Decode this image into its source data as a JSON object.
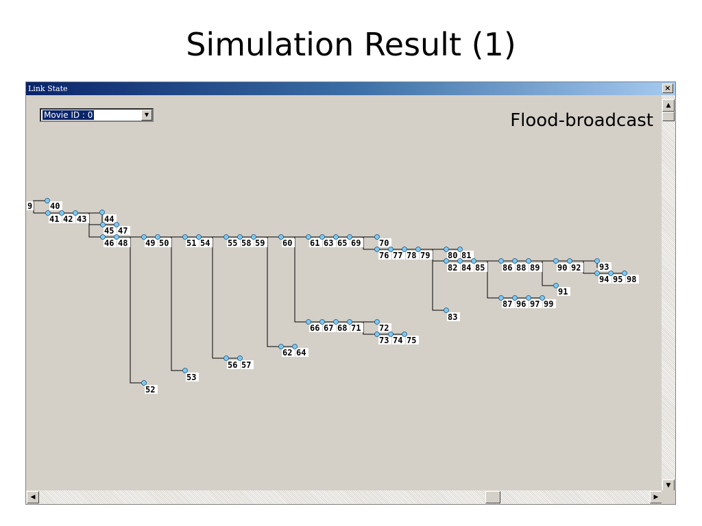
{
  "slide": {
    "title": "Simulation Result (1)"
  },
  "window": {
    "title": "Link State",
    "close_glyph": "×",
    "movie_select": {
      "value": "Movie ID : 0"
    },
    "overlay_label": "Flood-broadcast",
    "icons": {
      "close": "close-icon",
      "dropdown": "chevron-down-icon",
      "scroll_up": "arrow-up-icon",
      "scroll_down": "arrow-down-icon",
      "scroll_left": "arrow-left-icon",
      "scroll_right": "arrow-right-icon"
    },
    "colors": {
      "node_fill": "#7ec8f0",
      "node_stroke": "#1a4f7a",
      "edge": "#000000",
      "label_bg": "#ffffff",
      "canvas_bg": "#d4d0c8"
    }
  },
  "tree": {
    "nodes": [
      "9",
      "40",
      "41",
      "42",
      "43",
      "44",
      "45",
      "47",
      "46",
      "48",
      "49",
      "50",
      "51",
      "54",
      "55",
      "58",
      "59",
      "60",
      "61",
      "63",
      "65",
      "69",
      "70",
      "76",
      "77",
      "78",
      "79",
      "80",
      "81",
      "82",
      "84",
      "85",
      "86",
      "88",
      "89",
      "90",
      "92",
      "93",
      "94",
      "95",
      "98",
      "91",
      "87",
      "96",
      "97",
      "99",
      "83",
      "66",
      "67",
      "68",
      "71",
      "72",
      "73",
      "74",
      "75",
      "62",
      "64",
      "56",
      "57",
      "53",
      "52"
    ]
  }
}
